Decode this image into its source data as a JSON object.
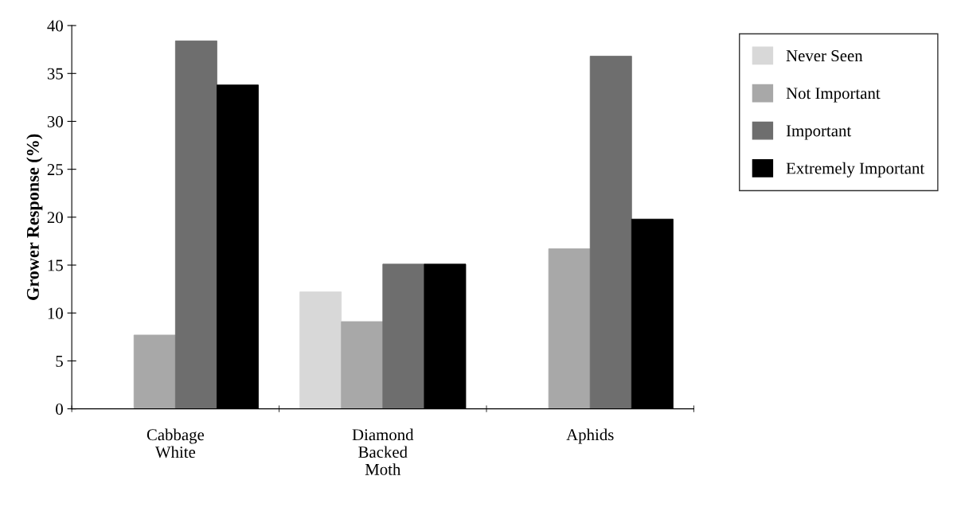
{
  "chart_data": {
    "type": "bar",
    "ylabel": "Grower Response (%)",
    "categories": [
      "Cabbage\nWhite",
      "Diamond\nBacked\nMoth",
      "Aphids"
    ],
    "series": [
      {
        "name": "Never Seen",
        "color": "#d8d8d8",
        "values": [
          0,
          12.2,
          0
        ]
      },
      {
        "name": "Not Important",
        "color": "#a8a8a8",
        "values": [
          7.7,
          9.1,
          16.7
        ]
      },
      {
        "name": "Important",
        "color": "#6e6e6e",
        "values": [
          38.4,
          15.1,
          36.8
        ]
      },
      {
        "name": "Extremely Important",
        "color": "#000000",
        "values": [
          33.8,
          15.1,
          19.8
        ]
      }
    ],
    "ylim": [
      0,
      40
    ],
    "yticks": [
      0,
      5,
      10,
      15,
      20,
      25,
      30,
      35,
      40
    ],
    "grid": false,
    "legend": "top right"
  }
}
